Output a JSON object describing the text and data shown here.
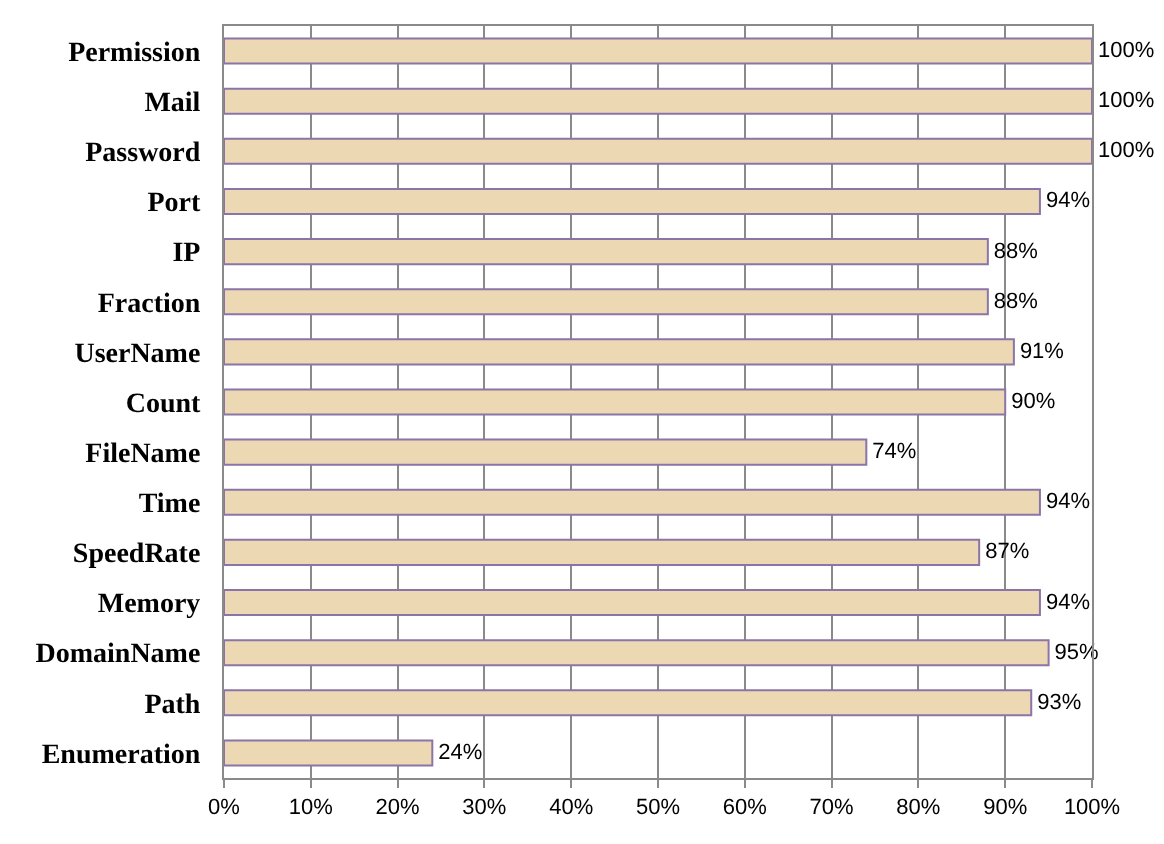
{
  "chart_data": {
    "type": "bar",
    "orientation": "horizontal",
    "categories": [
      "Permission",
      "Mail",
      "Password",
      "Port",
      "IP",
      "Fraction",
      "UserName",
      "Count",
      "FileName",
      "Time",
      "SpeedRate",
      "Memory",
      "DomainName",
      "Path",
      "Enumeration"
    ],
    "values": [
      100,
      100,
      100,
      94,
      88,
      88,
      91,
      90,
      74,
      94,
      87,
      94,
      95,
      93,
      24
    ],
    "value_labels": [
      "100%",
      "100%",
      "100%",
      "94%",
      "88%",
      "88%",
      "91%",
      "90%",
      "74%",
      "94%",
      "87%",
      "94%",
      "95%",
      "93%",
      "24%"
    ],
    "color": "#ecd9b4",
    "xlim": [
      0,
      100
    ],
    "xticks": [
      {
        "value": 0,
        "label": "0%"
      },
      {
        "value": 10,
        "label": "10%"
      },
      {
        "value": 20,
        "label": "20%"
      },
      {
        "value": 30,
        "label": "30%"
      },
      {
        "value": 40,
        "label": "40%"
      },
      {
        "value": 50,
        "label": "50%"
      },
      {
        "value": 60,
        "label": "60%"
      },
      {
        "value": 70,
        "label": "70%"
      },
      {
        "value": 80,
        "label": "80%"
      },
      {
        "value": 90,
        "label": "90%"
      },
      {
        "value": 100,
        "label": "100%"
      }
    ],
    "grid": "x"
  }
}
